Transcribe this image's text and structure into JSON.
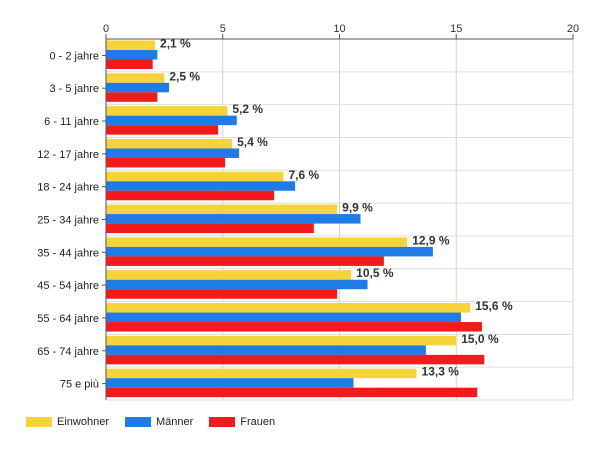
{
  "chart_data": {
    "type": "bar",
    "orientation": "horizontal",
    "categories": [
      "0 - 2 jahre",
      "3 - 5 jahre",
      "6 - 11 jahre",
      "12 - 17 jahre",
      "18 - 24 jahre",
      "25 - 34 jahre",
      "35 - 44 jahre",
      "45 - 54 jahre",
      "55 - 64 jahre",
      "65 - 74 jahre",
      "75 e più"
    ],
    "series": [
      {
        "name": "Einwohner",
        "color": "#f7d33a",
        "values": [
          2.1,
          2.5,
          5.2,
          5.4,
          7.6,
          9.9,
          12.9,
          10.5,
          15.6,
          15.0,
          13.3
        ]
      },
      {
        "name": "Männer",
        "color": "#1f7be6",
        "values": [
          2.2,
          2.7,
          5.6,
          5.7,
          8.1,
          10.9,
          14.0,
          11.2,
          15.2,
          13.7,
          10.6
        ]
      },
      {
        "name": "Frauen",
        "color": "#f21b1b",
        "values": [
          2.0,
          2.2,
          4.8,
          5.1,
          7.2,
          8.9,
          11.9,
          9.9,
          16.1,
          16.2,
          15.9
        ]
      }
    ],
    "data_labels": [
      "2,1 %",
      "2,5 %",
      "5,2 %",
      "5,4 %",
      "7,6 %",
      "9,9 %",
      "12,9 %",
      "10,5 %",
      "15,6 %",
      "15,0 %",
      "13,3 %"
    ],
    "xticks": [
      "0",
      "5",
      "10",
      "15",
      "20"
    ],
    "xlim": [
      0,
      20
    ],
    "grid": true,
    "legend_position": "bottom-left"
  }
}
